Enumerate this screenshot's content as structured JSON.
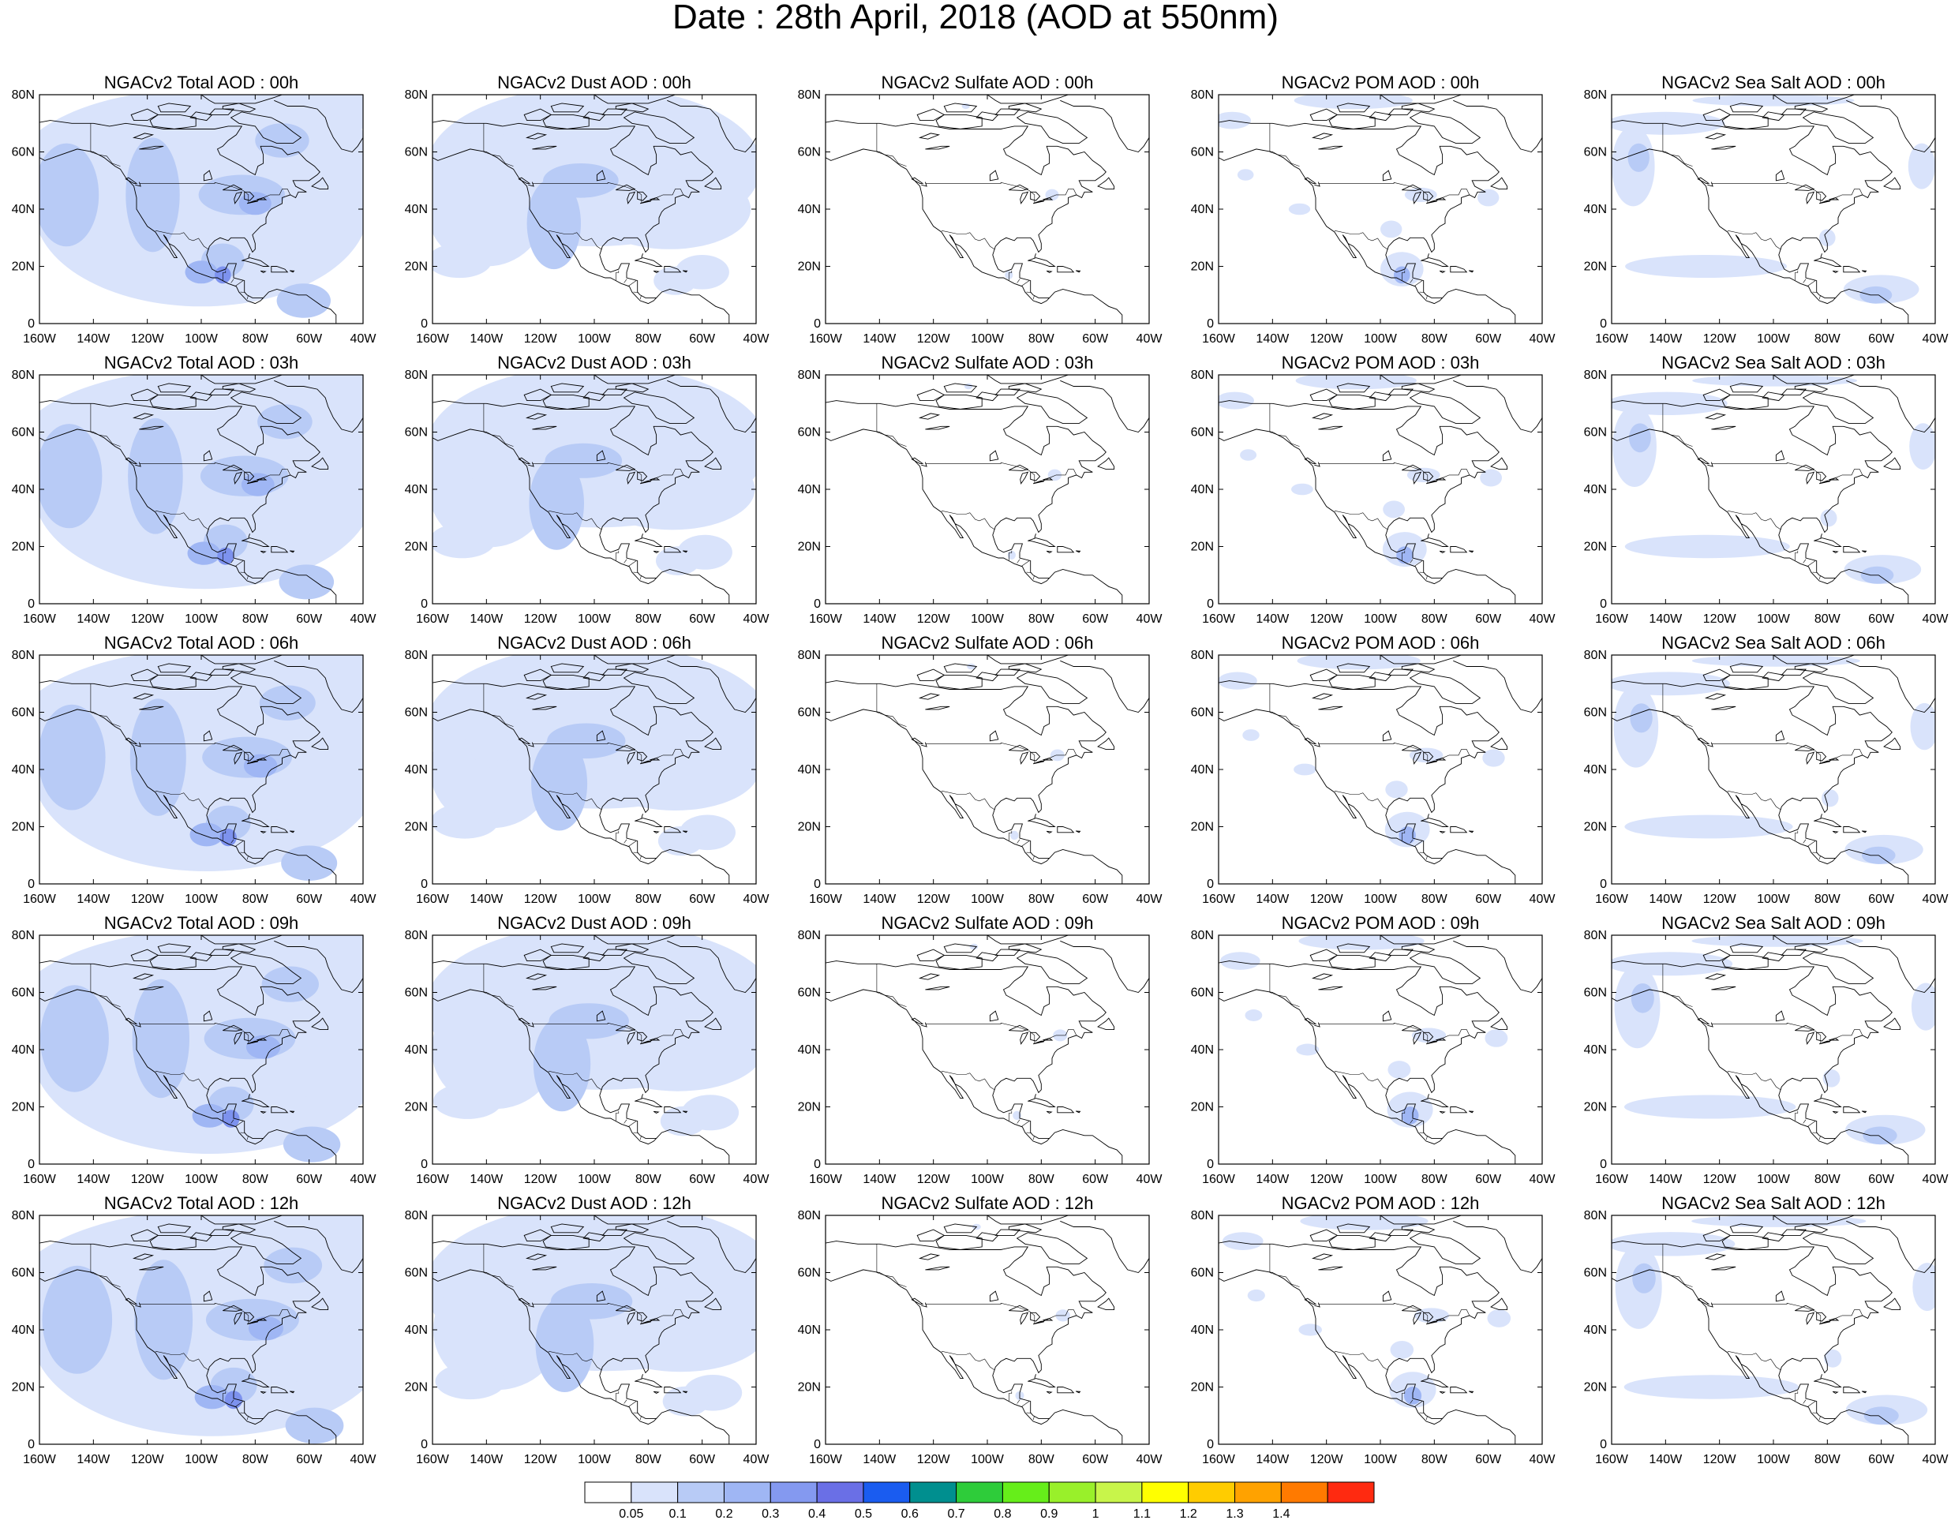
{
  "title": "Date : 28th April, 2018 (AOD at 550nm)",
  "map_extent": {
    "lon": [
      -160,
      -40
    ],
    "lat": [
      0,
      80
    ]
  },
  "lat_ticks": [
    "0",
    "20N",
    "40N",
    "60N",
    "80N"
  ],
  "lon_ticks": [
    "160W",
    "140W",
    "120W",
    "100W",
    "80W",
    "60W",
    "40W"
  ],
  "layout": {
    "columns": 5,
    "rows": 5
  },
  "panels": [
    {
      "title": "NGACv2 Total AOD : 00h",
      "field": "total",
      "hour": 0
    },
    {
      "title": "NGACv2 Dust AOD : 00h",
      "field": "dust",
      "hour": 0
    },
    {
      "title": "NGACv2 Sulfate AOD : 00h",
      "field": "sulfate",
      "hour": 0
    },
    {
      "title": "NGACv2 POM AOD : 00h",
      "field": "pom",
      "hour": 0
    },
    {
      "title": "NGACv2 Sea Salt AOD : 00h",
      "field": "seasalt",
      "hour": 0
    },
    {
      "title": "NGACv2 Total AOD : 03h",
      "field": "total",
      "hour": 3
    },
    {
      "title": "NGACv2 Dust AOD : 03h",
      "field": "dust",
      "hour": 3
    },
    {
      "title": "NGACv2 Sulfate AOD : 03h",
      "field": "sulfate",
      "hour": 3
    },
    {
      "title": "NGACv2 POM AOD : 03h",
      "field": "pom",
      "hour": 3
    },
    {
      "title": "NGACv2 Sea Salt AOD : 03h",
      "field": "seasalt",
      "hour": 3
    },
    {
      "title": "NGACv2 Total AOD : 06h",
      "field": "total",
      "hour": 6
    },
    {
      "title": "NGACv2 Dust AOD : 06h",
      "field": "dust",
      "hour": 6
    },
    {
      "title": "NGACv2 Sulfate AOD : 06h",
      "field": "sulfate",
      "hour": 6
    },
    {
      "title": "NGACv2 POM AOD : 06h",
      "field": "pom",
      "hour": 6
    },
    {
      "title": "NGACv2 Sea Salt AOD : 06h",
      "field": "seasalt",
      "hour": 6
    },
    {
      "title": "NGACv2 Total AOD : 09h",
      "field": "total",
      "hour": 9
    },
    {
      "title": "NGACv2 Dust AOD : 09h",
      "field": "dust",
      "hour": 9
    },
    {
      "title": "NGACv2 Sulfate AOD : 09h",
      "field": "sulfate",
      "hour": 9
    },
    {
      "title": "NGACv2 POM AOD : 09h",
      "field": "pom",
      "hour": 9
    },
    {
      "title": "NGACv2 Sea Salt  AOD : 09h",
      "field": "seasalt",
      "hour": 9
    },
    {
      "title": "NGACv2 Total AOD  : 12h",
      "field": "total",
      "hour": 12
    },
    {
      "title": "NGACv2 Dust AOD : 12h",
      "field": "dust",
      "hour": 12
    },
    {
      "title": "NGACv2 Sulfate AOD : 12h",
      "field": "sulfate",
      "hour": 12
    },
    {
      "title": "NGACv2 POM  AOD : 12h",
      "field": "pom",
      "hour": 12
    },
    {
      "title": "NGACv2 Sea Salt  AOD : 12h",
      "field": "seasalt",
      "hour": 12
    }
  ],
  "colorbar": {
    "labels": [
      "0.05",
      "0.1",
      "0.2",
      "0.3",
      "0.4",
      "0.5",
      "0.6",
      "0.7",
      "0.8",
      "0.9",
      "1",
      "1.1",
      "1.2",
      "1.3",
      "1.4"
    ],
    "colors": [
      "#ffffff",
      "#d9e3fb",
      "#b8cbf6",
      "#9fb6f4",
      "#8499f0",
      "#6a6fe6",
      "#1a5cf0",
      "#008f8f",
      "#2ecc3a",
      "#66ee1a",
      "#99f02a",
      "#c8f54a",
      "#ffff00",
      "#ffcc00",
      "#ffa200",
      "#ff7a00",
      "#ff2a10"
    ]
  }
}
